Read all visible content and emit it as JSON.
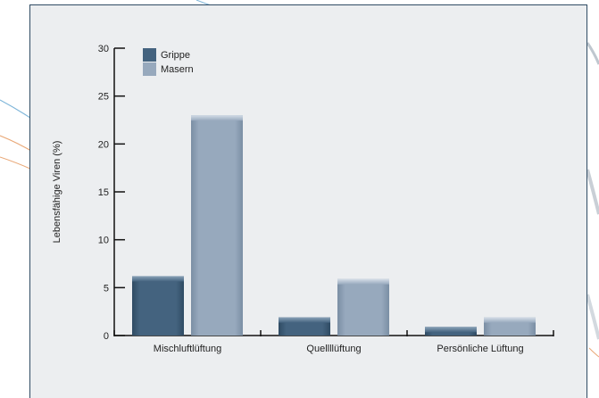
{
  "chart_data": {
    "type": "bar",
    "categories": [
      "Mischluftlüftung",
      "Quellllüftung",
      "Persönliche Lüftung"
    ],
    "series": [
      {
        "name": "Grippe",
        "values": [
          6.2,
          1.9,
          0.9
        ],
        "color": "#44637f"
      },
      {
        "name": "Masern",
        "values": [
          23.0,
          5.9,
          1.9
        ],
        "color": "#97a9bd"
      }
    ],
    "xlabel": "",
    "ylabel": "Lebensfähige Viren (%)",
    "ylim": [
      0,
      30
    ],
    "yticks": [
      0,
      5,
      10,
      15,
      20,
      25,
      30
    ],
    "legend_position": "top-left",
    "grid": false
  },
  "colors": {
    "panel_border": "#2f4b63",
    "panel_background": "#eceef0",
    "axis": "#111111"
  }
}
